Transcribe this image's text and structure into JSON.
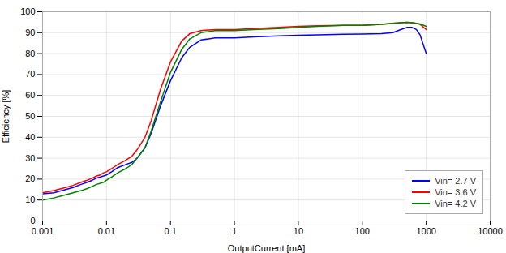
{
  "chart_data": {
    "type": "line",
    "xlabel": "OutputCurrent [mA]",
    "ylabel": "Efficiency [%]",
    "log": "x",
    "grid": true,
    "legend": "lower right",
    "xlim": [
      0.001,
      10000
    ],
    "ylim": [
      0,
      100
    ],
    "xticks": [
      0.001,
      0.01,
      0.1,
      1,
      10,
      100,
      1000,
      10000
    ],
    "yticks": [
      0,
      10,
      20,
      30,
      40,
      50,
      60,
      70,
      80,
      90,
      100
    ],
    "x": [
      0.001,
      0.0015,
      0.002,
      0.003,
      0.004,
      0.005,
      0.006,
      0.007,
      0.008,
      0.009,
      0.01,
      0.012,
      0.015,
      0.02,
      0.025,
      0.03,
      0.04,
      0.05,
      0.07,
      0.1,
      0.15,
      0.2,
      0.3,
      0.5,
      0.7,
      1.0,
      2.0,
      5.0,
      10.0,
      20.0,
      50.0,
      100.0,
      200.0,
      300.0,
      400.0,
      500.0,
      600.0,
      700.0,
      800.0,
      1000.0
    ],
    "series": [
      {
        "name": "Vin= 2.7 V",
        "color": "#0000ff",
        "values": [
          13.0,
          13.5,
          14.5,
          16.0,
          17.5,
          18.5,
          19.5,
          20.5,
          21.0,
          21.5,
          22.0,
          23.5,
          25.5,
          27.0,
          28.0,
          30.0,
          35.0,
          42.0,
          55.0,
          67.0,
          78.0,
          83.0,
          86.5,
          87.5,
          87.5,
          87.5,
          88.0,
          88.5,
          88.8,
          89.0,
          89.2,
          89.3,
          89.5,
          90.0,
          91.5,
          92.5,
          92.5,
          91.5,
          89.0,
          80.0
        ]
      },
      {
        "name": "Vin= 3.6 V",
        "color": "#ff0000",
        "values": [
          13.5,
          14.5,
          15.5,
          17.0,
          18.5,
          19.5,
          20.5,
          21.5,
          22.0,
          23.0,
          23.5,
          25.0,
          27.0,
          29.0,
          31.0,
          34.0,
          40.0,
          48.0,
          63.0,
          76.0,
          86.0,
          89.5,
          91.0,
          91.5,
          91.5,
          91.5,
          92.0,
          92.5,
          93.0,
          93.3,
          93.5,
          93.5,
          94.0,
          94.5,
          94.8,
          95.0,
          94.8,
          94.5,
          94.0,
          91.5
        ]
      },
      {
        "name": "Vin= 4.2 V",
        "color": "#008000",
        "values": [
          10.0,
          11.0,
          12.0,
          13.5,
          14.5,
          15.5,
          16.5,
          17.5,
          18.0,
          18.5,
          19.5,
          21.0,
          23.0,
          25.0,
          27.0,
          30.0,
          35.0,
          43.0,
          57.0,
          71.0,
          82.0,
          87.0,
          90.0,
          91.0,
          91.0,
          91.0,
          91.5,
          92.0,
          92.5,
          93.0,
          93.5,
          93.5,
          94.0,
          94.5,
          94.8,
          95.0,
          94.8,
          94.5,
          94.2,
          93.0
        ]
      }
    ]
  }
}
